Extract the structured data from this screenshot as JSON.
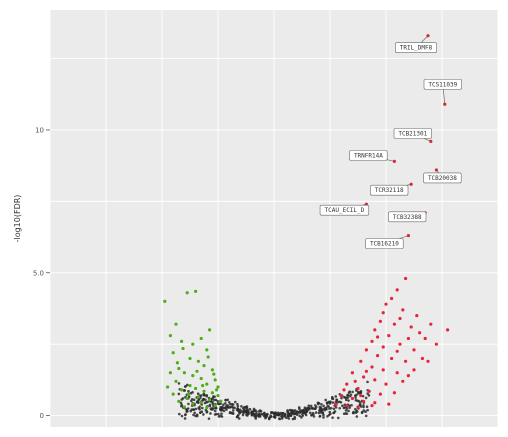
{
  "chart_data": {
    "type": "scatter",
    "title": "",
    "xlabel": "",
    "ylabel": "-log10(FDR)",
    "xlim": [
      -8,
      8
    ],
    "ylim": [
      -0.4,
      14.2
    ],
    "y_ticks": [
      {
        "value": 0,
        "label": "0"
      },
      {
        "value": 5,
        "label": "5.0"
      },
      {
        "value": 10,
        "label": "10"
      }
    ],
    "grid": true,
    "legend": "none",
    "colors": {
      "background": "#ebebeb",
      "grid_major": "#ffffff",
      "down": "#4caf1a",
      "up": "#e8243b",
      "ns": "#2b2b2b"
    },
    "labeled_points": [
      {
        "label": "TRIL_DMF8",
        "x": 5.5,
        "y": 13.3
      },
      {
        "label": "TCS11039",
        "x": 6.1,
        "y": 10.9
      },
      {
        "label": "TCB21301",
        "x": 5.6,
        "y": 9.6
      },
      {
        "label": "TRNFR14A",
        "x": 4.3,
        "y": 8.9
      },
      {
        "label": "TCB20038",
        "x": 5.8,
        "y": 8.6
      },
      {
        "label": "TCR32118",
        "x": 4.9,
        "y": 8.1
      },
      {
        "label": "TCAU_ECIL_D",
        "x": 3.3,
        "y": 7.4
      },
      {
        "label": "TCB32388",
        "x": 5.4,
        "y": 7.1
      },
      {
        "label": "TCB16210",
        "x": 4.8,
        "y": 6.3
      }
    ],
    "series": [
      {
        "class": "down",
        "points": [
          [
            -3.1,
            4.3
          ],
          [
            -2.8,
            4.35
          ],
          [
            -3.9,
            4.0
          ],
          [
            -3.5,
            3.2
          ],
          [
            -3.7,
            2.8
          ],
          [
            -2.3,
            3.0
          ],
          [
            -2.6,
            2.7
          ],
          [
            -3.3,
            2.6
          ],
          [
            -2.9,
            2.5
          ],
          [
            -2.4,
            2.3
          ],
          [
            -3.6,
            2.2
          ],
          [
            -3.0,
            2.0
          ],
          [
            -2.7,
            1.9
          ],
          [
            -2.5,
            1.75
          ],
          [
            -3.4,
            1.65
          ],
          [
            -2.2,
            1.6
          ],
          [
            -3.2,
            1.5
          ],
          [
            -2.9,
            1.4
          ],
          [
            -2.6,
            1.3
          ],
          [
            -3.5,
            1.2
          ],
          [
            -2.1,
            1.25
          ],
          [
            -2.4,
            1.1
          ],
          [
            -3.0,
            1.05
          ],
          [
            -2.8,
            0.95
          ],
          [
            -3.3,
            0.9
          ],
          [
            -2.5,
            0.85
          ],
          [
            -2.2,
            0.8
          ],
          [
            -3.6,
            0.75
          ],
          [
            -2.0,
            0.7
          ],
          [
            -2.7,
            0.65
          ],
          [
            -3.1,
            0.6
          ],
          [
            -2.3,
            0.55
          ],
          [
            -3.4,
            0.5
          ],
          [
            -2.6,
            0.45
          ],
          [
            -2.9,
            0.4
          ],
          [
            -2.1,
            0.35
          ],
          [
            -3.2,
            0.3
          ],
          [
            -2.4,
            0.28
          ],
          [
            -1.9,
            0.5
          ],
          [
            -2.0,
            1.0
          ],
          [
            -3.7,
            1.5
          ],
          [
            -3.8,
            1.0
          ],
          [
            -2.35,
            2.05
          ],
          [
            -3.25,
            2.35
          ],
          [
            -2.75,
            1.55
          ],
          [
            -2.15,
            1.45
          ],
          [
            -3.45,
            1.85
          ],
          [
            -2.55,
            1.05
          ],
          [
            -2.05,
            0.9
          ],
          [
            -3.05,
            0.75
          ]
        ]
      },
      {
        "class": "up",
        "points": [
          [
            4.7,
            4.8
          ],
          [
            4.4,
            4.4
          ],
          [
            4.2,
            4.1
          ],
          [
            4.0,
            3.9
          ],
          [
            3.9,
            3.6
          ],
          [
            4.6,
            3.7
          ],
          [
            5.1,
            3.5
          ],
          [
            3.8,
            3.3
          ],
          [
            4.3,
            3.2
          ],
          [
            4.9,
            3.1
          ],
          [
            5.6,
            3.2
          ],
          [
            6.2,
            3.0
          ],
          [
            3.6,
            3.0
          ],
          [
            4.1,
            2.8
          ],
          [
            4.8,
            2.7
          ],
          [
            5.4,
            2.7
          ],
          [
            3.5,
            2.6
          ],
          [
            3.9,
            2.4
          ],
          [
            4.5,
            2.5
          ],
          [
            5.0,
            2.3
          ],
          [
            5.8,
            2.5
          ],
          [
            3.3,
            2.3
          ],
          [
            3.7,
            2.1
          ],
          [
            4.2,
            2.0
          ],
          [
            4.7,
            1.9
          ],
          [
            5.3,
            2.0
          ],
          [
            3.1,
            1.9
          ],
          [
            3.5,
            1.7
          ],
          [
            3.9,
            1.6
          ],
          [
            4.4,
            1.5
          ],
          [
            5.0,
            1.6
          ],
          [
            2.8,
            1.5
          ],
          [
            3.2,
            1.35
          ],
          [
            3.6,
            1.25
          ],
          [
            4.0,
            1.1
          ],
          [
            4.6,
            1.2
          ],
          [
            2.6,
            1.1
          ],
          [
            3.0,
            0.95
          ],
          [
            3.4,
            0.85
          ],
          [
            3.8,
            0.75
          ],
          [
            4.3,
            0.8
          ],
          [
            2.4,
            0.7
          ],
          [
            2.8,
            0.6
          ],
          [
            3.2,
            0.5
          ],
          [
            3.6,
            0.45
          ],
          [
            2.2,
            0.4
          ],
          [
            2.6,
            0.35
          ],
          [
            3.0,
            0.3
          ],
          [
            4.1,
            0.4
          ],
          [
            3.5,
            0.35
          ],
          [
            4.5,
            3.4
          ],
          [
            5.2,
            2.9
          ],
          [
            3.3,
            1.55
          ],
          [
            2.9,
            1.2
          ],
          [
            4.8,
            1.4
          ],
          [
            3.7,
            2.75
          ],
          [
            4.4,
            2.25
          ],
          [
            2.5,
            0.9
          ],
          [
            3.1,
            0.7
          ],
          [
            5.5,
            1.9
          ]
        ]
      }
    ]
  }
}
